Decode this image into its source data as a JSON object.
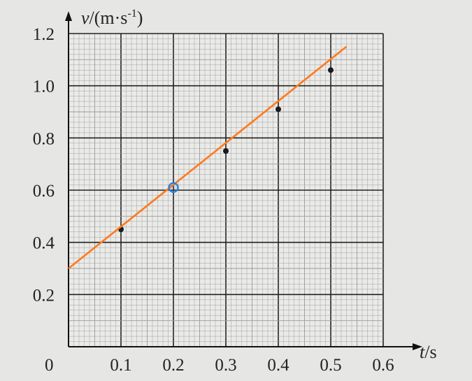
{
  "chart_data": {
    "type": "scatter",
    "xlabel_var": "t",
    "xlabel_unit": "/s",
    "ylabel_var": "v",
    "ylabel_unit": "/(m·s",
    "ylabel_exp": "-1",
    "ylabel_close": ")",
    "origin_label": "0",
    "xticks": [
      {
        "value": 0.1,
        "label": "0.1"
      },
      {
        "value": 0.2,
        "label": "0.2"
      },
      {
        "value": 0.3,
        "label": "0.3"
      },
      {
        "value": 0.4,
        "label": "0.4"
      },
      {
        "value": 0.5,
        "label": "0.5"
      },
      {
        "value": 0.6,
        "label": "0.6"
      }
    ],
    "yticks": [
      {
        "value": 0.2,
        "label": "0.2"
      },
      {
        "value": 0.4,
        "label": "0.4"
      },
      {
        "value": 0.6,
        "label": "0.6"
      },
      {
        "value": 0.8,
        "label": "0.8"
      },
      {
        "value": 1.0,
        "label": "1.0"
      },
      {
        "value": 1.2,
        "label": "1.2"
      }
    ],
    "xlim": [
      0,
      0.6
    ],
    "ylim": [
      0,
      1.2
    ],
    "points": [
      {
        "x": 0.1,
        "y": 0.45
      },
      {
        "x": 0.3,
        "y": 0.75
      },
      {
        "x": 0.4,
        "y": 0.91
      },
      {
        "x": 0.5,
        "y": 1.06
      }
    ],
    "highlight_point": {
      "x": 0.2,
      "y": 0.61
    },
    "fit_line": {
      "x1": 0.0,
      "y1": 0.3,
      "x2": 0.53,
      "y2": 1.15
    },
    "grid": true,
    "colors": {
      "paper": "#eaeae8",
      "grid_major": "#222222",
      "grid_minor": "#9a9a9a",
      "points": "#1a1a1a",
      "fit_line": "#ff7a1a",
      "highlight": "#2a7fd8"
    }
  }
}
